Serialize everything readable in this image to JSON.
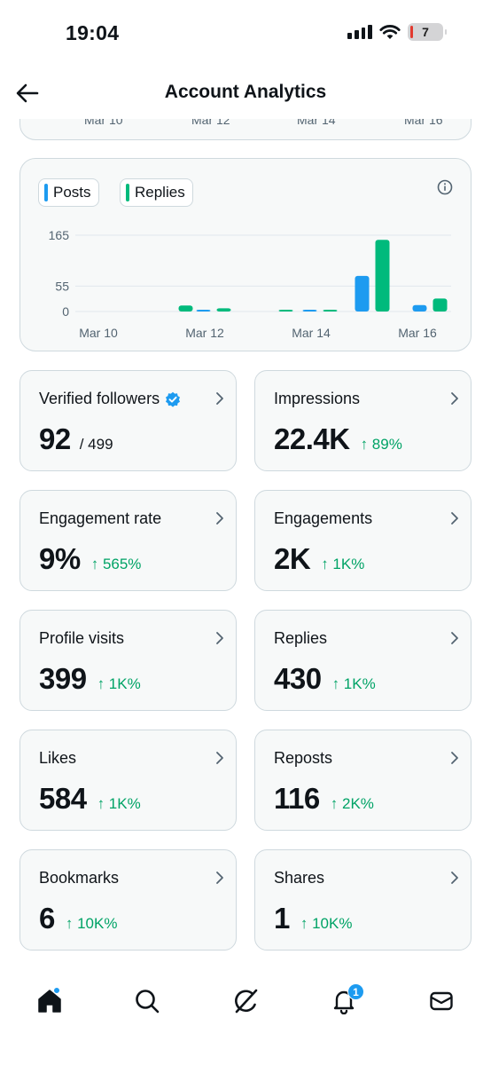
{
  "status_bar": {
    "time": "19:04",
    "battery": "7"
  },
  "header": {
    "title": "Account Analytics"
  },
  "previous_chart": {
    "x_ticks": [
      "Mar 10",
      "Mar 12",
      "Mar 14",
      "Mar 16"
    ]
  },
  "chart_legend": {
    "posts": "Posts",
    "replies": "Replies"
  },
  "colors": {
    "posts": "#1d9bf0",
    "replies": "#00ba7c",
    "positive_change": "#00a366"
  },
  "chart_data": {
    "type": "bar",
    "categories": [
      "Mar 10",
      "Mar 11",
      "Mar 12",
      "Mar 13",
      "Mar 14",
      "Mar 15",
      "Mar 16"
    ],
    "series": [
      {
        "name": "Posts",
        "values": [
          0,
          0,
          1,
          0,
          1,
          77,
          14
        ]
      },
      {
        "name": "Replies",
        "values": [
          0,
          13,
          7,
          2,
          3,
          155,
          28
        ]
      }
    ],
    "x_tick_labels": [
      "Mar 10",
      "Mar 12",
      "Mar 14",
      "Mar 16"
    ],
    "y_ticks": [
      "165",
      "55",
      "0"
    ],
    "y_tick_values": [
      165,
      55,
      0
    ],
    "ylim": [
      0,
      165
    ],
    "grid": true,
    "legend": "top-left"
  },
  "stats": [
    {
      "label": "Verified followers",
      "verified_badge": true,
      "value": "92",
      "sub": "/ 499",
      "change": ""
    },
    {
      "label": "Impressions",
      "value": "22.4K",
      "change": "89%"
    },
    {
      "label": "Engagement rate",
      "value": "9%",
      "change": "565%"
    },
    {
      "label": "Engagements",
      "value": "2K",
      "change": "1K%"
    },
    {
      "label": "Profile visits",
      "value": "399",
      "change": "1K%"
    },
    {
      "label": "Replies",
      "value": "430",
      "change": "1K%"
    },
    {
      "label": "Likes",
      "value": "584",
      "change": "1K%"
    },
    {
      "label": "Reposts",
      "value": "116",
      "change": "2K%"
    },
    {
      "label": "Bookmarks",
      "value": "6",
      "change": "10K%"
    },
    {
      "label": "Shares",
      "value": "1",
      "change": "10K%"
    }
  ],
  "change_arrow": "↑",
  "tab_bar": {
    "tabs": [
      {
        "name": "home",
        "icon": "home-icon",
        "has_dot": true
      },
      {
        "name": "search",
        "icon": "search-icon"
      },
      {
        "name": "grok",
        "icon": "grok-icon"
      },
      {
        "name": "notifications",
        "icon": "bell-icon",
        "badge": "1"
      },
      {
        "name": "messages",
        "icon": "mail-icon"
      }
    ]
  }
}
